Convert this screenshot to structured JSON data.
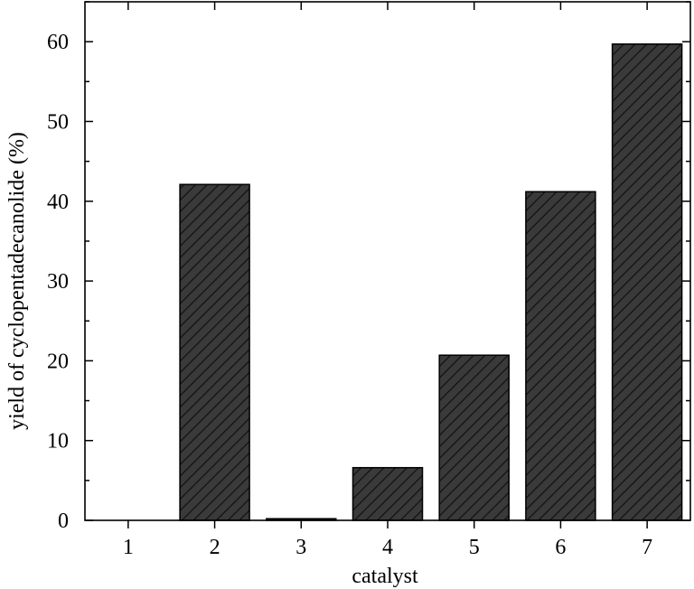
{
  "chart_data": {
    "type": "bar",
    "xlabel": "catalyst",
    "ylabel": "yield of cyclopentadecanolide (%)",
    "categories": [
      "1",
      "2",
      "3",
      "4",
      "5",
      "6",
      "7"
    ],
    "values": [
      0,
      42.1,
      0.2,
      6.6,
      20.7,
      41.2,
      59.7
    ],
    "ylim": [
      0,
      65
    ],
    "yticks": [
      0,
      10,
      20,
      30,
      40,
      50,
      60
    ],
    "bar_fill": "#3a3a3a",
    "bar_hatch": "diagonal",
    "bar_stroke": "#000000",
    "grid": false
  }
}
